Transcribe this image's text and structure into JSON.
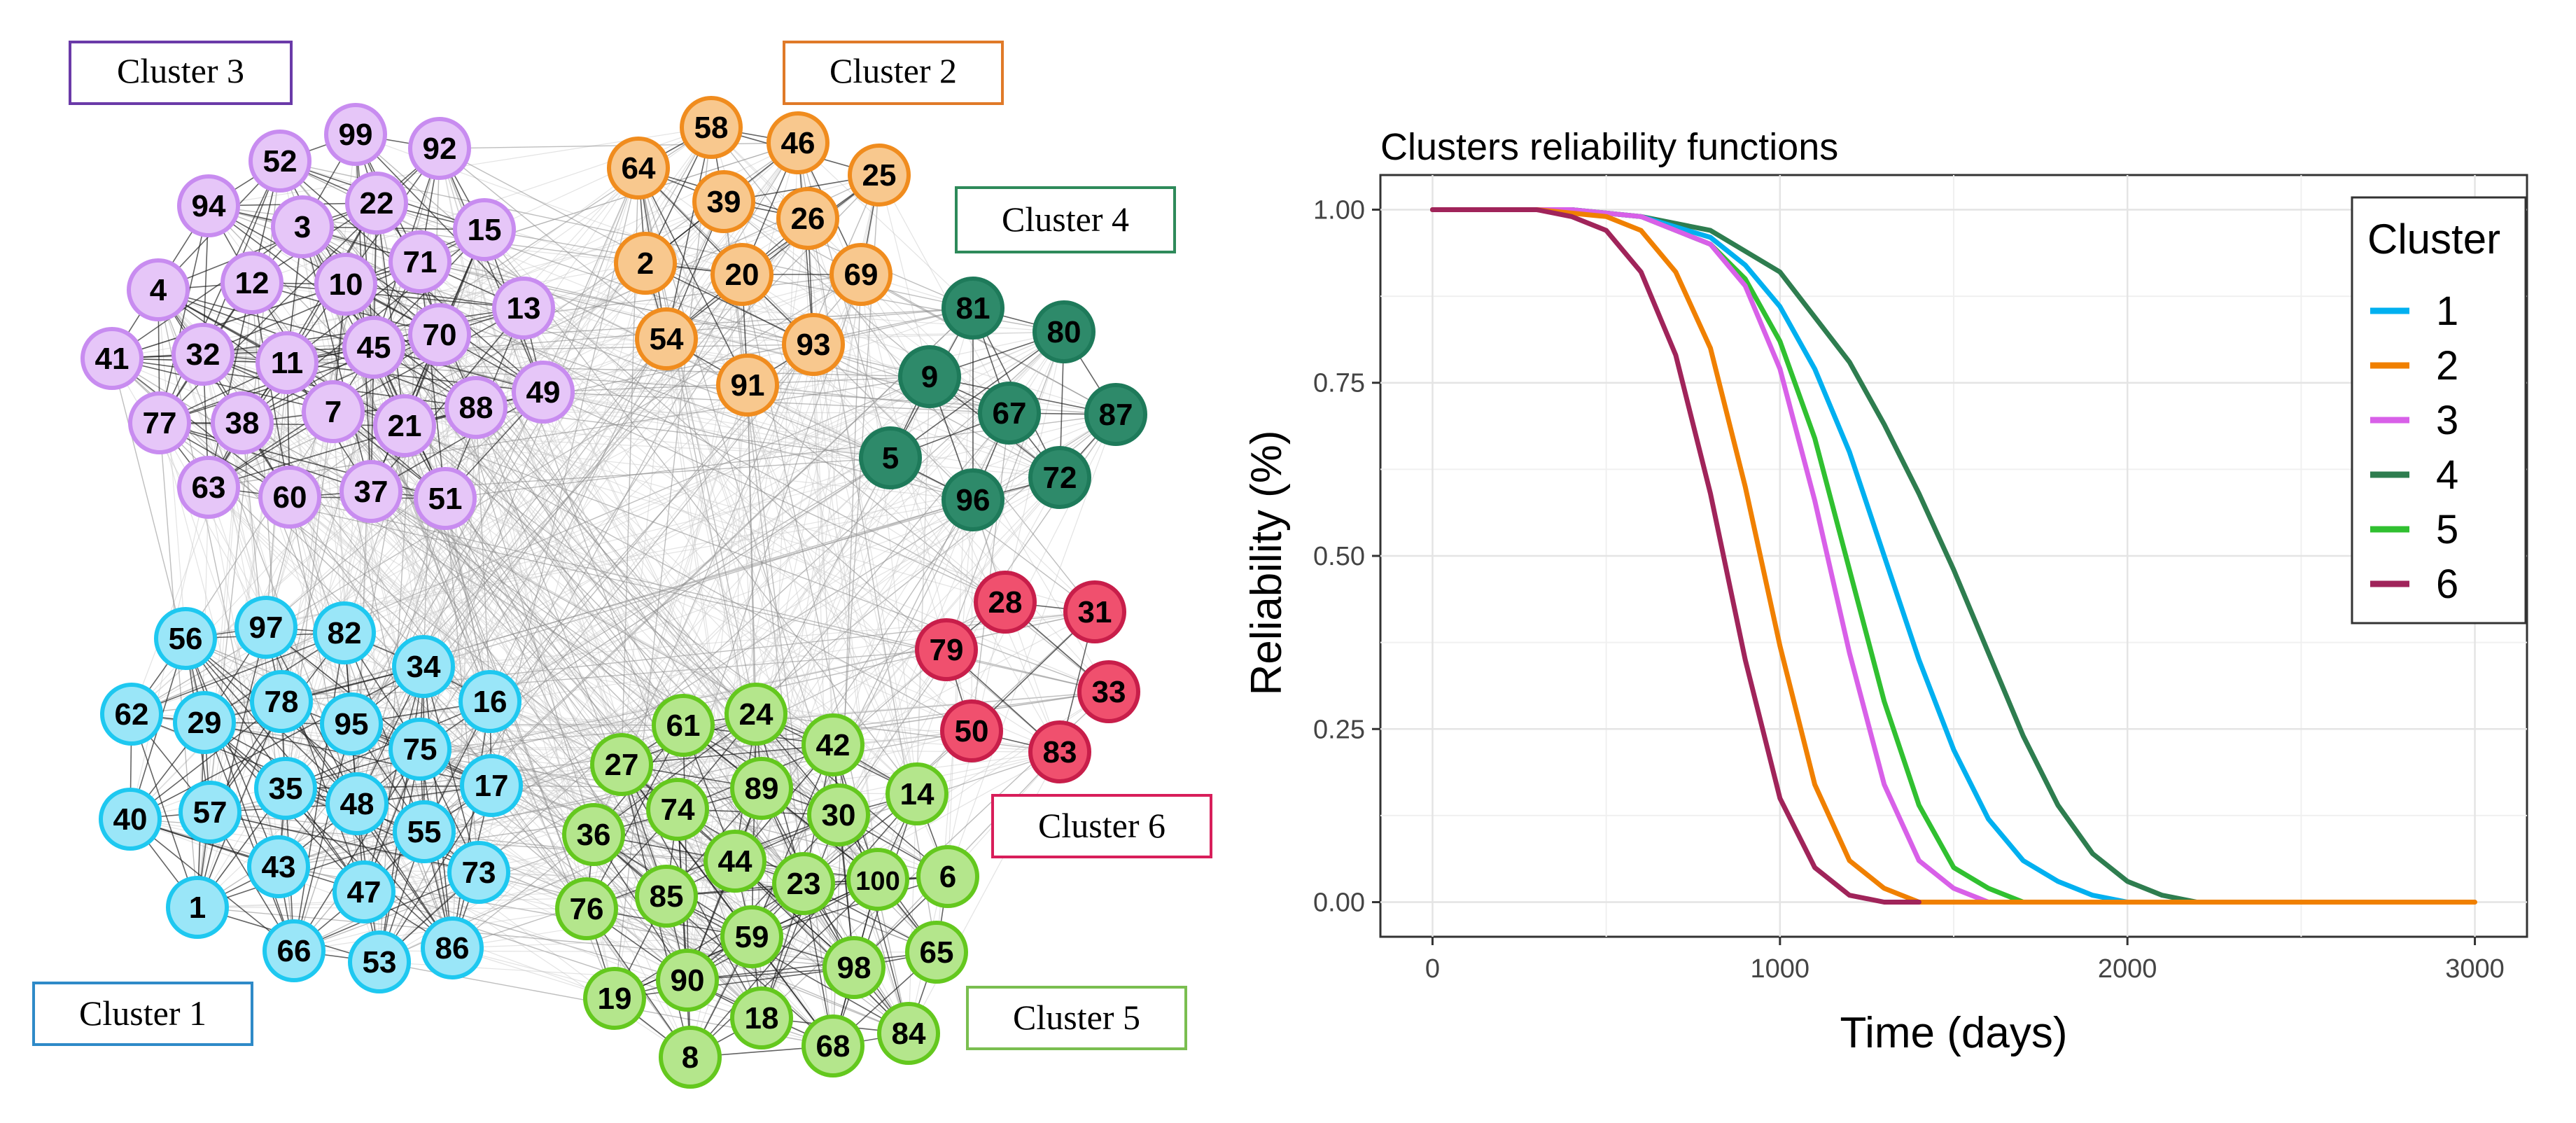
{
  "network": {
    "clusters": [
      {
        "label": "Cluster 1",
        "color": "#1ec8f0",
        "fill": "#9ae6f8",
        "nodes": [
          "56",
          "97",
          "82",
          "34",
          "16",
          "62",
          "29",
          "78",
          "95",
          "75",
          "17",
          "40",
          "57",
          "35",
          "48",
          "55",
          "73",
          "43",
          "47",
          "1",
          "66",
          "53",
          "86"
        ]
      },
      {
        "label": "Cluster 2",
        "color": "#f08c1e",
        "fill": "#f8c88e",
        "nodes": [
          "58",
          "46",
          "64",
          "39",
          "26",
          "25",
          "2",
          "20",
          "69",
          "54",
          "93",
          "91"
        ]
      },
      {
        "label": "Cluster 3",
        "color": "#c88cf0",
        "fill": "#e6c6f8",
        "nodes": [
          "99",
          "92",
          "52",
          "94",
          "3",
          "22",
          "15",
          "71",
          "4",
          "12",
          "10",
          "13",
          "41",
          "32",
          "11",
          "45",
          "70",
          "77",
          "38",
          "7",
          "21",
          "88",
          "49",
          "63",
          "60",
          "37",
          "51"
        ]
      },
      {
        "label": "Cluster 4",
        "color": "#1e7a5a",
        "fill": "#2e8a6a",
        "nodes": [
          "81",
          "80",
          "9",
          "67",
          "87",
          "5",
          "72",
          "96"
        ]
      },
      {
        "label": "Cluster 5",
        "color": "#64c81e",
        "fill": "#b4e68c",
        "nodes": [
          "61",
          "24",
          "42",
          "27",
          "89",
          "74",
          "30",
          "14",
          "36",
          "44",
          "23",
          "100",
          "6",
          "76",
          "85",
          "59",
          "65",
          "98",
          "19",
          "90",
          "18",
          "84",
          "68",
          "8"
        ]
      },
      {
        "label": "Cluster 6",
        "color": "#c81e4a",
        "fill": "#f0506e",
        "nodes": [
          "28",
          "31",
          "79",
          "33",
          "50",
          "83"
        ]
      }
    ],
    "label_borders": [
      "#2e8ac8",
      "#e07a28",
      "#6a3aa8",
      "#2e8a5a",
      "#7abe50",
      "#d81e5a"
    ]
  },
  "chart_data": {
    "type": "line",
    "title": "Clusters reliability functions",
    "xlabel": "Time (days)",
    "ylabel": "Reliability (%)",
    "xlim": [
      -150,
      3150
    ],
    "ylim": [
      -0.05,
      1.05
    ],
    "x_ticks": [
      0,
      1000,
      2000,
      3000
    ],
    "x_tick_labels": [
      "0",
      "1000",
      "2000",
      "3000"
    ],
    "y_ticks": [
      0.0,
      0.25,
      0.5,
      0.75,
      1.0
    ],
    "y_tick_labels": [
      "0.00",
      "0.25",
      "0.50",
      "0.75",
      "1.00"
    ],
    "legend_title": "Cluster",
    "legend_position": "top-right",
    "series": [
      {
        "name": "1",
        "color": "#00b0f0",
        "x": [
          0,
          400,
          600,
          800,
          900,
          1000,
          1100,
          1200,
          1300,
          1400,
          1500,
          1600,
          1700,
          1800,
          1900,
          2000,
          2100,
          2200
        ],
        "y": [
          1.0,
          1.0,
          0.99,
          0.96,
          0.92,
          0.86,
          0.77,
          0.65,
          0.5,
          0.35,
          0.22,
          0.12,
          0.06,
          0.03,
          0.01,
          0.0,
          0.0,
          0.0
        ]
      },
      {
        "name": "2",
        "color": "#f08000",
        "x": [
          0,
          300,
          500,
          600,
          700,
          800,
          900,
          1000,
          1100,
          1200,
          1300,
          1400,
          1500,
          3000
        ],
        "y": [
          1.0,
          1.0,
          0.99,
          0.97,
          0.91,
          0.8,
          0.6,
          0.37,
          0.17,
          0.06,
          0.02,
          0.0,
          0.0,
          0.0
        ]
      },
      {
        "name": "3",
        "color": "#d860e8",
        "x": [
          0,
          400,
          600,
          800,
          900,
          1000,
          1100,
          1200,
          1300,
          1400,
          1500,
          1600
        ],
        "y": [
          1.0,
          1.0,
          0.99,
          0.95,
          0.89,
          0.77,
          0.58,
          0.36,
          0.17,
          0.06,
          0.02,
          0.0
        ]
      },
      {
        "name": "4",
        "color": "#2e7d4f",
        "x": [
          0,
          400,
          600,
          800,
          1000,
          1200,
          1300,
          1400,
          1500,
          1600,
          1700,
          1800,
          1900,
          2000,
          2100,
          2200,
          2300,
          2400,
          2550
        ],
        "y": [
          1.0,
          1.0,
          0.99,
          0.97,
          0.91,
          0.78,
          0.69,
          0.59,
          0.48,
          0.36,
          0.24,
          0.14,
          0.07,
          0.03,
          0.01,
          0.0,
          0.0,
          0.0,
          0.0
        ]
      },
      {
        "name": "5",
        "color": "#30c030",
        "x": [
          0,
          400,
          600,
          800,
          900,
          1000,
          1100,
          1200,
          1300,
          1400,
          1500,
          1600,
          1700,
          1800,
          2000
        ],
        "y": [
          1.0,
          1.0,
          0.99,
          0.95,
          0.9,
          0.81,
          0.67,
          0.48,
          0.29,
          0.14,
          0.05,
          0.02,
          0.0,
          0.0,
          0.0
        ]
      },
      {
        "name": "6",
        "color": "#a0245a",
        "x": [
          0,
          300,
          400,
          500,
          600,
          700,
          800,
          900,
          1000,
          1100,
          1200,
          1300,
          1400
        ],
        "y": [
          1.0,
          1.0,
          0.99,
          0.97,
          0.91,
          0.79,
          0.59,
          0.35,
          0.15,
          0.05,
          0.01,
          0.0,
          0.0
        ]
      }
    ]
  }
}
